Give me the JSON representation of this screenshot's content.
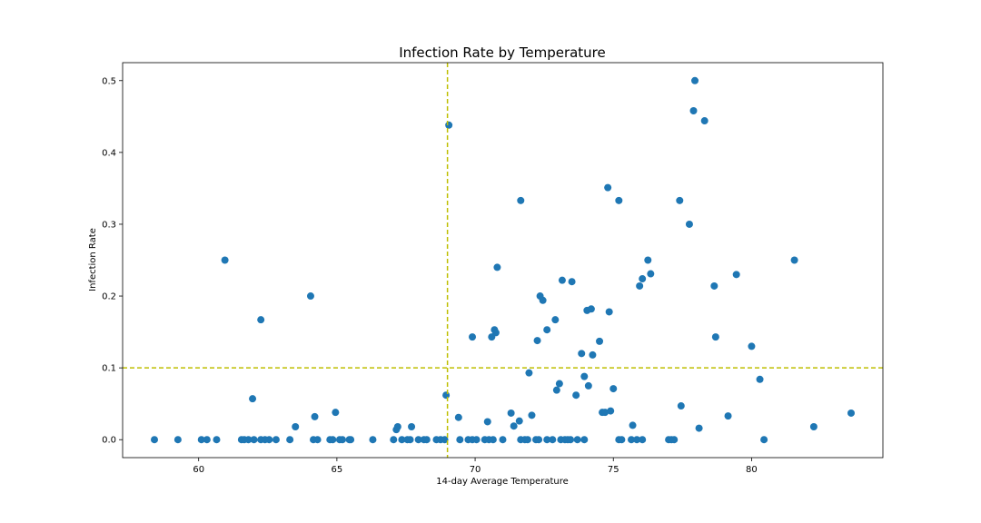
{
  "chart_data": {
    "type": "scatter",
    "title": "Infection Rate by Temperature",
    "xlabel": "14-day Average Temperature",
    "ylabel": "Infection Rate",
    "xlim": [
      57.25,
      84.75
    ],
    "ylim": [
      -0.025,
      0.525
    ],
    "xticks": [
      60,
      65,
      70,
      75,
      80
    ],
    "yticks": [
      0.0,
      0.1,
      0.2,
      0.3,
      0.4,
      0.5
    ],
    "grid": false,
    "legend": "none",
    "point_color": "#1f77b4",
    "reference_line_color": "#bfbf00",
    "reference_lines": {
      "x": 69.0,
      "y": 0.1
    },
    "points": {
      "x": [
        58.4,
        59.25,
        60.1,
        60.3,
        60.65,
        61.55,
        61.65,
        61.8,
        62.0,
        62.25,
        62.4,
        62.55,
        62.8,
        63.3,
        64.15,
        64.3,
        64.75,
        64.85,
        65.1,
        65.2,
        65.45,
        65.5,
        66.3,
        67.05,
        67.35,
        67.55,
        67.65,
        67.95,
        68.15,
        68.25,
        68.6,
        68.75,
        68.9,
        69.45,
        69.75,
        69.9,
        70.05,
        70.35,
        70.5,
        70.65,
        71.0,
        71.65,
        71.8,
        71.9,
        72.2,
        72.3,
        72.6,
        72.8,
        73.1,
        73.25,
        73.35,
        73.45,
        73.7,
        73.95,
        75.2,
        75.3,
        75.65,
        75.85,
        76.05,
        77.0,
        77.1,
        77.2,
        60.95,
        61.95,
        62.25,
        63.5,
        64.05,
        64.2,
        64.95,
        67.15,
        67.2,
        67.7,
        68.95,
        69.05,
        69.4,
        69.9,
        70.45,
        70.6,
        70.7,
        70.75,
        70.8,
        71.3,
        71.4,
        71.6,
        71.65,
        71.95,
        72.05,
        72.25,
        72.35,
        72.45,
        72.6,
        72.9,
        72.95,
        73.05,
        73.15,
        73.5,
        73.65,
        73.85,
        73.95,
        74.05,
        74.1,
        74.2,
        74.25,
        74.5,
        74.6,
        74.7,
        74.8,
        74.85,
        74.9,
        75.0,
        75.2,
        75.7,
        75.95,
        76.05,
        76.25,
        76.35,
        77.4,
        77.45,
        77.75,
        77.9,
        77.95,
        78.1,
        78.3,
        78.65,
        78.7,
        79.15,
        79.45,
        80.0,
        80.3,
        80.45,
        81.55,
        82.25,
        83.6
      ],
      "y": [
        0,
        0,
        0,
        0,
        0,
        0,
        0,
        0,
        0,
        0,
        0,
        0,
        0,
        0,
        0,
        0,
        0,
        0,
        0,
        0,
        0,
        0,
        0,
        0,
        0,
        0,
        0,
        0,
        0,
        0,
        0,
        0,
        0,
        0,
        0,
        0,
        0,
        0,
        0,
        0,
        0,
        0,
        0,
        0,
        0,
        0,
        0,
        0,
        0,
        0,
        0,
        0,
        0,
        0,
        0,
        0,
        0,
        0,
        0,
        0,
        0,
        0,
        0.25,
        0.057,
        0.167,
        0.018,
        0.2,
        0.032,
        0.038,
        0.014,
        0.018,
        0.018,
        0.062,
        0.438,
        0.031,
        0.143,
        0.025,
        0.143,
        0.153,
        0.149,
        0.24,
        0.037,
        0.019,
        0.026,
        0.333,
        0.093,
        0.034,
        0.138,
        0.2,
        0.194,
        0.153,
        0.167,
        0.069,
        0.078,
        0.222,
        0.22,
        0.062,
        0.12,
        0.088,
        0.18,
        0.075,
        0.182,
        0.118,
        0.137,
        0.038,
        0.038,
        0.351,
        0.178,
        0.04,
        0.071,
        0.333,
        0.02,
        0.214,
        0.224,
        0.25,
        0.231,
        0.333,
        0.047,
        0.3,
        0.458,
        0.5,
        0.016,
        0.444,
        0.214,
        0.143,
        0.033,
        0.23,
        0.13,
        0.084,
        0,
        0.25,
        0.018,
        0.037
      ]
    }
  }
}
